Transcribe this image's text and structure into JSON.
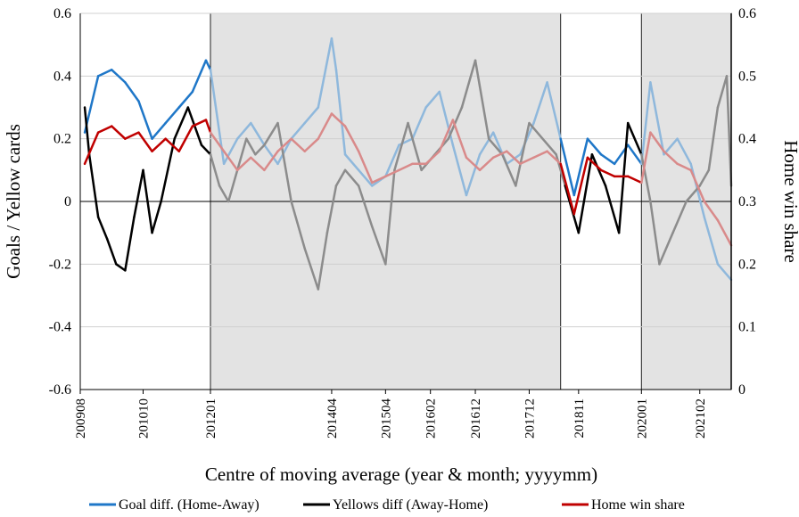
{
  "chart_data": {
    "type": "line",
    "xlabel": "Centre of moving average (year & month; yyyymm)",
    "ylabel_left": "Goals / Yellow cards",
    "ylabel_right": "Home win share",
    "x_ticks": [
      "200908",
      "201010",
      "201201",
      "201404",
      "201504",
      "201602",
      "201612",
      "201712",
      "201811",
      "202001",
      "202102"
    ],
    "x_range": [
      "200908",
      "202109"
    ],
    "ylim_left": [
      -0.6,
      0.6
    ],
    "ylim_right": [
      0,
      0.6
    ],
    "y_ticks_left": [
      "-0.6",
      "-0.4",
      "-0.2",
      "0",
      "0.2",
      "0.4",
      "0.6"
    ],
    "y_ticks_right": [
      "0",
      "0.1",
      "0.2",
      "0.3",
      "0.4",
      "0.5",
      "0.6"
    ],
    "shaded_periods": [
      {
        "start": "201201",
        "end": "201807"
      },
      {
        "start": "202001",
        "end": "202109"
      }
    ],
    "legend_position": "bottom",
    "series": [
      {
        "name": "Goal diff. (Home-Away)",
        "axis": "left",
        "color": "#1f77c8",
        "faded_color": "#8fb8dc",
        "x": [
          "200909",
          "200912",
          "201003",
          "201006",
          "201009",
          "201012",
          "201103",
          "201106",
          "201109",
          "201112",
          "201201",
          "201204",
          "201207",
          "201210",
          "201301",
          "201304",
          "201307",
          "201310",
          "201401",
          "201404",
          "201405",
          "201407",
          "201410",
          "201501",
          "201504",
          "201507",
          "201510",
          "201601",
          "201604",
          "201607",
          "201610",
          "201701",
          "201704",
          "201707",
          "201710",
          "201801",
          "201804",
          "201807",
          "201810",
          "201901",
          "201904",
          "201907",
          "201910",
          "202001",
          "202003",
          "202006",
          "202009",
          "202012",
          "202103",
          "202106",
          "202109"
        ],
        "y": [
          0.22,
          0.4,
          0.42,
          0.38,
          0.32,
          0.2,
          0.25,
          0.3,
          0.35,
          0.45,
          0.42,
          0.12,
          0.2,
          0.25,
          0.18,
          0.12,
          0.2,
          0.25,
          0.3,
          0.52,
          0.42,
          0.15,
          0.1,
          0.05,
          0.08,
          0.18,
          0.2,
          0.3,
          0.35,
          0.18,
          0.02,
          0.15,
          0.22,
          0.12,
          0.15,
          0.25,
          0.38,
          0.2,
          0.02,
          0.2,
          0.15,
          0.12,
          0.18,
          0.12,
          0.38,
          0.15,
          0.2,
          0.12,
          -0.05,
          -0.2,
          -0.25
        ]
      },
      {
        "name": "Yellows diff (Away-Home)",
        "axis": "left",
        "color": "#000000",
        "faded_color": "#8c8c8c",
        "x": [
          "200909",
          "200910",
          "200912",
          "201002",
          "201004",
          "201006",
          "201008",
          "201010",
          "201012",
          "201102",
          "201105",
          "201108",
          "201111",
          "201201",
          "201203",
          "201205",
          "201207",
          "201209",
          "201211",
          "201301",
          "201304",
          "201307",
          "201310",
          "201401",
          "201403",
          "201405",
          "201407",
          "201410",
          "201501",
          "201504",
          "201506",
          "201509",
          "201512",
          "201603",
          "201606",
          "201609",
          "201612",
          "201703",
          "201706",
          "201709",
          "201712",
          "201803",
          "201806",
          "201808",
          "201811",
          "201902",
          "201905",
          "201908",
          "201910",
          "202001",
          "202003",
          "202005",
          "202008",
          "202011",
          "202102",
          "202104",
          "202106",
          "202108",
          "202109"
        ],
        "y": [
          0.3,
          0.15,
          -0.05,
          -0.12,
          -0.2,
          -0.22,
          -0.05,
          0.1,
          -0.1,
          0.0,
          0.2,
          0.3,
          0.18,
          0.15,
          0.05,
          0.0,
          0.1,
          0.2,
          0.15,
          0.18,
          0.25,
          0.0,
          -0.15,
          -0.28,
          -0.1,
          0.05,
          0.1,
          0.05,
          -0.08,
          -0.2,
          0.1,
          0.25,
          0.1,
          0.15,
          0.2,
          0.3,
          0.45,
          0.2,
          0.15,
          0.05,
          0.25,
          0.2,
          0.15,
          0.05,
          -0.1,
          0.15,
          0.05,
          -0.1,
          0.25,
          0.15,
          0.0,
          -0.2,
          -0.1,
          0.0,
          0.05,
          0.1,
          0.3,
          0.4,
          0.05
        ]
      },
      {
        "name": "Home win share",
        "axis": "right",
        "color": "#c00000",
        "faded_color": "#d98a8a",
        "x": [
          "200909",
          "200912",
          "201003",
          "201006",
          "201009",
          "201012",
          "201103",
          "201106",
          "201109",
          "201112",
          "201201",
          "201204",
          "201207",
          "201210",
          "201301",
          "201304",
          "201307",
          "201310",
          "201401",
          "201404",
          "201407",
          "201410",
          "201501",
          "201504",
          "201507",
          "201510",
          "201601",
          "201604",
          "201607",
          "201610",
          "201701",
          "201704",
          "201707",
          "201710",
          "201801",
          "201804",
          "201807",
          "201810",
          "201901",
          "201904",
          "201907",
          "201910",
          "202001",
          "202003",
          "202006",
          "202009",
          "202012",
          "202103",
          "202106",
          "202109"
        ],
        "y": [
          0.36,
          0.41,
          0.42,
          0.4,
          0.41,
          0.38,
          0.4,
          0.38,
          0.42,
          0.43,
          0.41,
          0.38,
          0.35,
          0.37,
          0.35,
          0.38,
          0.4,
          0.38,
          0.4,
          0.44,
          0.42,
          0.38,
          0.33,
          0.34,
          0.35,
          0.36,
          0.36,
          0.38,
          0.43,
          0.37,
          0.35,
          0.37,
          0.38,
          0.36,
          0.37,
          0.38,
          0.36,
          0.28,
          0.37,
          0.35,
          0.34,
          0.34,
          0.33,
          0.41,
          0.38,
          0.36,
          0.35,
          0.3,
          0.27,
          0.23
        ]
      }
    ]
  }
}
